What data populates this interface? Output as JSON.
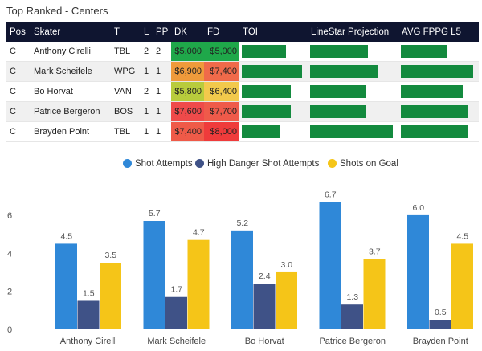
{
  "title": "Top Ranked - Centers",
  "table": {
    "columns": [
      "Pos",
      "Skater",
      "T",
      "L",
      "PP",
      "DK",
      "FD",
      "TOI",
      "LineStar Projection",
      "AVG FPPG L5"
    ],
    "rows": [
      {
        "pos": "C",
        "skater": "Anthony Cirelli",
        "team": "TBL",
        "line": "2",
        "pp": "2",
        "dk": "$5,000",
        "fd": "$5,000",
        "dk_color": "#1fa84a",
        "fd_color": "#1fa84a",
        "toi": 0.73,
        "proj": 0.7,
        "fppg": 0.64
      },
      {
        "pos": "C",
        "skater": "Mark Scheifele",
        "team": "WPG",
        "line": "1",
        "pp": "1",
        "dk": "$6,900",
        "fd": "$7,400",
        "dk_color": "#ef9a3b",
        "fd_color": "#f06a4a",
        "toi": 1.0,
        "proj": 0.83,
        "fppg": 1.0
      },
      {
        "pos": "C",
        "skater": "Bo Horvat",
        "team": "VAN",
        "line": "2",
        "pp": "1",
        "dk": "$5,800",
        "fd": "$6,400",
        "dk_color": "#b8cc3c",
        "fd_color": "#f2c94c",
        "toi": 0.81,
        "proj": 0.67,
        "fppg": 0.86
      },
      {
        "pos": "C",
        "skater": "Patrice Bergeron",
        "team": "BOS",
        "line": "1",
        "pp": "1",
        "dk": "$7,600",
        "fd": "$7,700",
        "dk_color": "#ef4a4a",
        "fd_color": "#ef5a4a",
        "toi": 0.82,
        "proj": 0.68,
        "fppg": 0.93
      },
      {
        "pos": "C",
        "skater": "Brayden Point",
        "team": "TBL",
        "line": "1",
        "pp": "1",
        "dk": "$7,400",
        "fd": "$8,000",
        "dk_color": "#ef5a48",
        "fd_color": "#ef3b3b",
        "toi": 0.63,
        "proj": 1.0,
        "fppg": 0.92
      }
    ]
  },
  "chart_data": {
    "type": "bar",
    "categories": [
      "Anthony Cirelli",
      "Mark Scheifele",
      "Bo Horvat",
      "Patrice Bergeron",
      "Brayden Point"
    ],
    "series": [
      {
        "name": "Shot Attempts",
        "color": "#2f88d8",
        "values": [
          4.5,
          5.7,
          5.2,
          6.7,
          6.0
        ]
      },
      {
        "name": "High Danger Shot Attempts",
        "color": "#3f5287",
        "values": [
          1.5,
          1.7,
          2.4,
          1.3,
          0.5
        ]
      },
      {
        "name": "Shots on Goal",
        "color": "#f5c518",
        "values": [
          3.5,
          4.7,
          3.0,
          3.7,
          4.5
        ]
      }
    ],
    "y_ticks": [
      0,
      2,
      4,
      6
    ],
    "ylim": [
      0,
      7.6
    ],
    "legend": "top-center",
    "grid": false
  }
}
